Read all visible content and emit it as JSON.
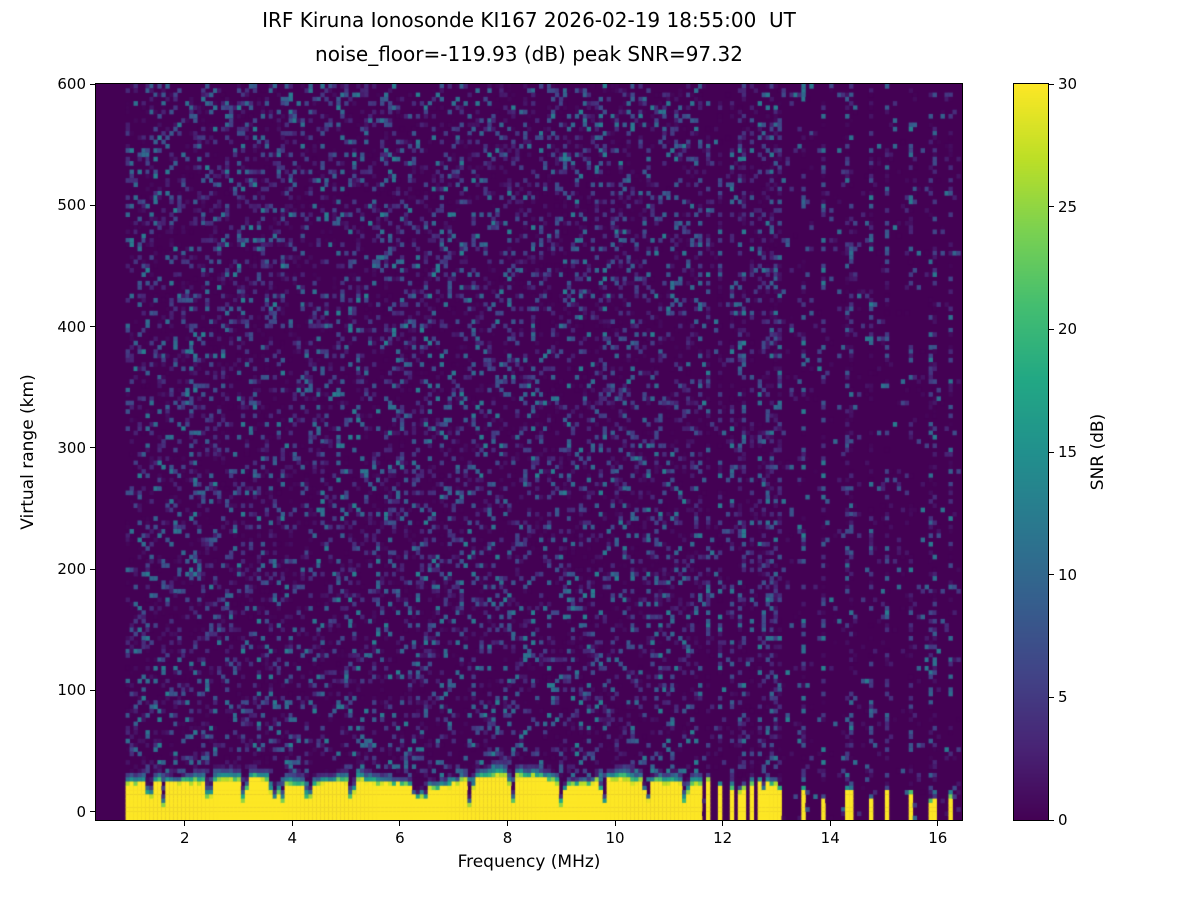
{
  "chart_data": {
    "type": "heatmap",
    "title": "IRF Kiruna Ionosonde KI167 2026-02-19 18:55:00  UT",
    "subtitle": "noise_floor=-119.93 (dB) peak SNR=97.32",
    "station": "IRF Kiruna Ionosonde KI167",
    "timestamp_ut": "2026-02-19 18:55:00",
    "noise_floor_db": -119.93,
    "peak_snr_db": 97.32,
    "xlabel": "Frequency (MHz)",
    "ylabel": "Virtual range (km)",
    "xlim": [
      0.35,
      16.45
    ],
    "ylim": [
      -7,
      600
    ],
    "xticks": [
      2,
      4,
      6,
      8,
      10,
      12,
      14,
      16
    ],
    "yticks": [
      0,
      100,
      200,
      300,
      400,
      500,
      600
    ],
    "grid": false,
    "colorbar": {
      "label": "SNR (dB)",
      "ticks": [
        0,
        5,
        10,
        15,
        20,
        25,
        30
      ],
      "vmin": 0,
      "vmax": 30,
      "colormap": "viridis",
      "position": "right"
    },
    "features": {
      "data_freq_range_mhz": [
        0.9,
        16.42
      ],
      "background_noise": "sparse speckle 1-12 dB over a 0 dB dark background, denser below 11.7 MHz",
      "ground_echo": {
        "description": "strong saturated echo layer (30 dB) from 0 km up to ~20-30 km with a green/teal fringe up to ~35-45 km",
        "freq_range_mhz": [
          0.9,
          11.65
        ],
        "strong_top_km_mean": 24,
        "transition_top_km_mean": 38,
        "peak_value_db": 30,
        "notch_freqs_mhz": [
          1.35,
          1.6,
          2.45,
          3.1,
          3.65,
          3.8,
          4.3,
          5.1,
          6.3,
          6.45,
          7.3,
          8.1,
          9.0,
          9.8,
          10.6,
          11.3
        ]
      },
      "striped_echo": {
        "description": "echo band breaks into discrete vertical stripes with dark gaps",
        "freq_range_mhz": [
          11.7,
          13.05
        ],
        "stripe_freqs_mhz": [
          11.75,
          11.95,
          12.15,
          12.35,
          12.55,
          12.72,
          12.88,
          13.02
        ],
        "top_km": 26
      },
      "isolated_stripes_mhz": [
        13.5,
        13.9,
        14.35,
        14.75,
        15.05,
        15.5,
        15.9,
        16.25
      ],
      "isolated_stripe_top_km": [
        18,
        9,
        16,
        8,
        14,
        15,
        7,
        12
      ],
      "vertical_noise_columns": "faint dashed vertical interference columns above each stripe frequency from ~11.7 MHz upward"
    }
  }
}
